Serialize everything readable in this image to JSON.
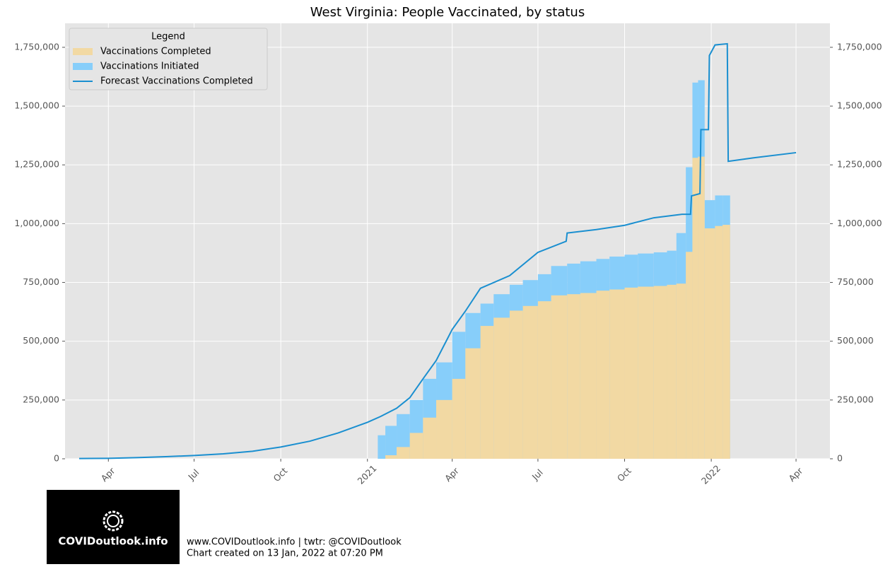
{
  "chart_data": {
    "type": "bar",
    "title": "West Virginia: People Vaccinated, by status",
    "legend_title": "Legend",
    "legend_position": "upper left",
    "grid": true,
    "xlim": [
      "2020-02-15",
      "2022-05-07"
    ],
    "xticks": [
      {
        "value": "2020-04-01",
        "label": "Apr"
      },
      {
        "value": "2020-07-01",
        "label": "Jul"
      },
      {
        "value": "2020-10-01",
        "label": "Oct"
      },
      {
        "value": "2021-01-01",
        "label": "2021"
      },
      {
        "value": "2021-04-01",
        "label": "Apr"
      },
      {
        "value": "2021-07-01",
        "label": "Jul"
      },
      {
        "value": "2021-10-01",
        "label": "Oct"
      },
      {
        "value": "2022-01-01",
        "label": "2022"
      },
      {
        "value": "2022-04-01",
        "label": "Apr"
      }
    ],
    "ylim": [
      0,
      1852000
    ],
    "yticks": [
      0,
      {
        "value": 250000,
        "label": "250,000"
      },
      {
        "value": 500000,
        "label": "500,000"
      },
      {
        "value": 750000,
        "label": "750,000"
      },
      {
        "value": 1000000,
        "label": "1,000,000"
      },
      {
        "value": 1250000,
        "label": "1,250,000"
      },
      {
        "value": 1500000,
        "label": "1,500,000"
      },
      {
        "value": 1750000,
        "label": "1,750,000"
      }
    ],
    "series": [
      {
        "name": "Vaccinations Completed",
        "type": "bar",
        "color": "#f2d9a3",
        "x": [
          "2021-01-12",
          "2021-01-20",
          "2021-02-01",
          "2021-02-15",
          "2021-03-01",
          "2021-03-15",
          "2021-04-01",
          "2021-04-15",
          "2021-05-01",
          "2021-05-15",
          "2021-06-01",
          "2021-06-15",
          "2021-07-01",
          "2021-07-15",
          "2021-08-01",
          "2021-08-15",
          "2021-09-01",
          "2021-09-15",
          "2021-10-01",
          "2021-10-15",
          "2021-11-01",
          "2021-11-15",
          "2021-11-25",
          "2021-12-05",
          "2021-12-12",
          "2021-12-18",
          "2021-12-25",
          "2022-01-05",
          "2022-01-13"
        ],
        "values": [
          0,
          15000,
          50000,
          110000,
          175000,
          250000,
          340000,
          470000,
          565000,
          600000,
          630000,
          650000,
          670000,
          695000,
          700000,
          705000,
          715000,
          720000,
          728000,
          732000,
          735000,
          740000,
          745000,
          880000,
          1280000,
          1285000,
          980000,
          990000,
          995000
        ]
      },
      {
        "name": "Vaccinations Initiated",
        "type": "bar",
        "color": "#87cefa",
        "x": [
          "2021-01-12",
          "2021-01-20",
          "2021-02-01",
          "2021-02-15",
          "2021-03-01",
          "2021-03-15",
          "2021-04-01",
          "2021-04-15",
          "2021-05-01",
          "2021-05-15",
          "2021-06-01",
          "2021-06-15",
          "2021-07-01",
          "2021-07-15",
          "2021-08-01",
          "2021-08-15",
          "2021-09-01",
          "2021-09-15",
          "2021-10-01",
          "2021-10-15",
          "2021-11-01",
          "2021-11-15",
          "2021-11-25",
          "2021-12-05",
          "2021-12-12",
          "2021-12-18",
          "2021-12-25",
          "2022-01-05",
          "2022-01-13"
        ],
        "values": [
          100000,
          140000,
          190000,
          250000,
          340000,
          410000,
          540000,
          620000,
          660000,
          700000,
          740000,
          760000,
          785000,
          820000,
          830000,
          840000,
          850000,
          860000,
          868000,
          873000,
          878000,
          885000,
          960000,
          1240000,
          1600000,
          1610000,
          1100000,
          1120000,
          1120000
        ]
      },
      {
        "name": "Forecast Vaccinations Completed",
        "type": "line",
        "color": "#1a8fd0",
        "x": [
          "2020-03-01",
          "2020-04-01",
          "2020-05-01",
          "2020-06-01",
          "2020-07-01",
          "2020-08-01",
          "2020-09-01",
          "2020-10-01",
          "2020-11-01",
          "2020-12-01",
          "2021-01-01",
          "2021-01-15",
          "2021-02-01",
          "2021-02-15",
          "2021-03-01",
          "2021-03-15",
          "2021-04-01",
          "2021-04-15",
          "2021-05-01",
          "2021-06-01",
          "2021-07-01",
          "2021-07-31",
          "2021-08-01",
          "2021-09-01",
          "2021-10-01",
          "2021-11-01",
          "2021-12-01",
          "2021-12-10",
          "2021-12-11",
          "2021-12-20",
          "2021-12-21",
          "2021-12-29",
          "2021-12-30",
          "2022-01-05",
          "2022-01-18",
          "2022-01-19",
          "2022-02-15",
          "2022-04-01"
        ],
        "values": [
          1000,
          2000,
          5000,
          9000,
          14000,
          21000,
          32000,
          50000,
          75000,
          110000,
          155000,
          180000,
          215000,
          260000,
          340000,
          418000,
          550000,
          628000,
          725000,
          779000,
          878000,
          925000,
          960000,
          975000,
          993000,
          1025000,
          1040000,
          1040000,
          1118000,
          1128000,
          1400000,
          1400000,
          1715000,
          1760000,
          1765000,
          1265000,
          1280000,
          1302000
        ]
      }
    ]
  },
  "footer": {
    "logo_text": "COVIDoutlook.info",
    "line1": "www.COVIDoutlook.info | twtr: @COVIDoutlook",
    "line2": "Chart created on 13 Jan, 2022 at 07:20 PM"
  }
}
